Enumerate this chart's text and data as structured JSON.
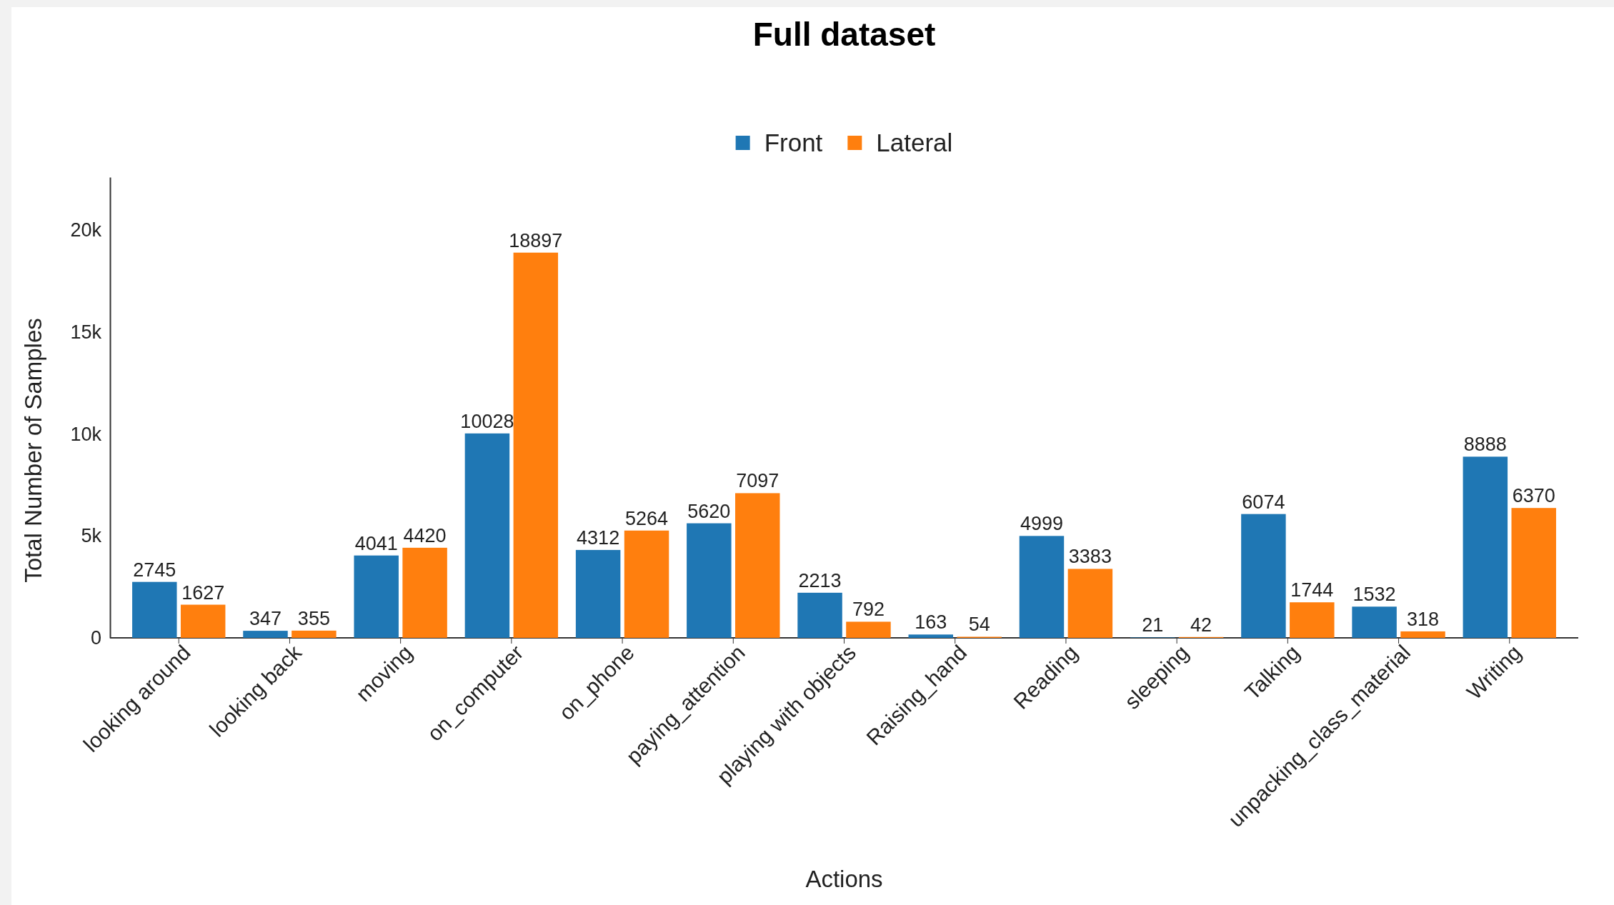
{
  "chart_data": {
    "type": "bar",
    "title": "Full dataset",
    "xlabel": "Actions",
    "ylabel": "Total Number of Samples",
    "categories": [
      "looking around",
      "looking back",
      "moving",
      "on_computer",
      "on_phone",
      "paying_attention",
      "playing with objects",
      "Raising_hand",
      "Reading",
      "sleeping",
      "Talking",
      "unpacking_class_material",
      "Writing"
    ],
    "series": [
      {
        "name": "Front",
        "color": "#1f77b4",
        "values": [
          2745,
          347,
          4041,
          10028,
          4312,
          5620,
          2213,
          163,
          4999,
          21,
          6074,
          1532,
          8888
        ]
      },
      {
        "name": "Lateral",
        "color": "#ff7f0e",
        "values": [
          1627,
          355,
          4420,
          18897,
          5264,
          7097,
          792,
          54,
          3383,
          42,
          1744,
          318,
          6370
        ]
      }
    ],
    "ylim": [
      0,
      22600
    ],
    "yticks": [
      0,
      {
        "value": 5000,
        "label": "5k"
      },
      {
        "value": 10000,
        "label": "10k"
      },
      {
        "value": 15000,
        "label": "15k"
      },
      {
        "value": 20000,
        "label": "20k"
      }
    ],
    "grid": false,
    "legend": "top",
    "data_labels": true
  }
}
